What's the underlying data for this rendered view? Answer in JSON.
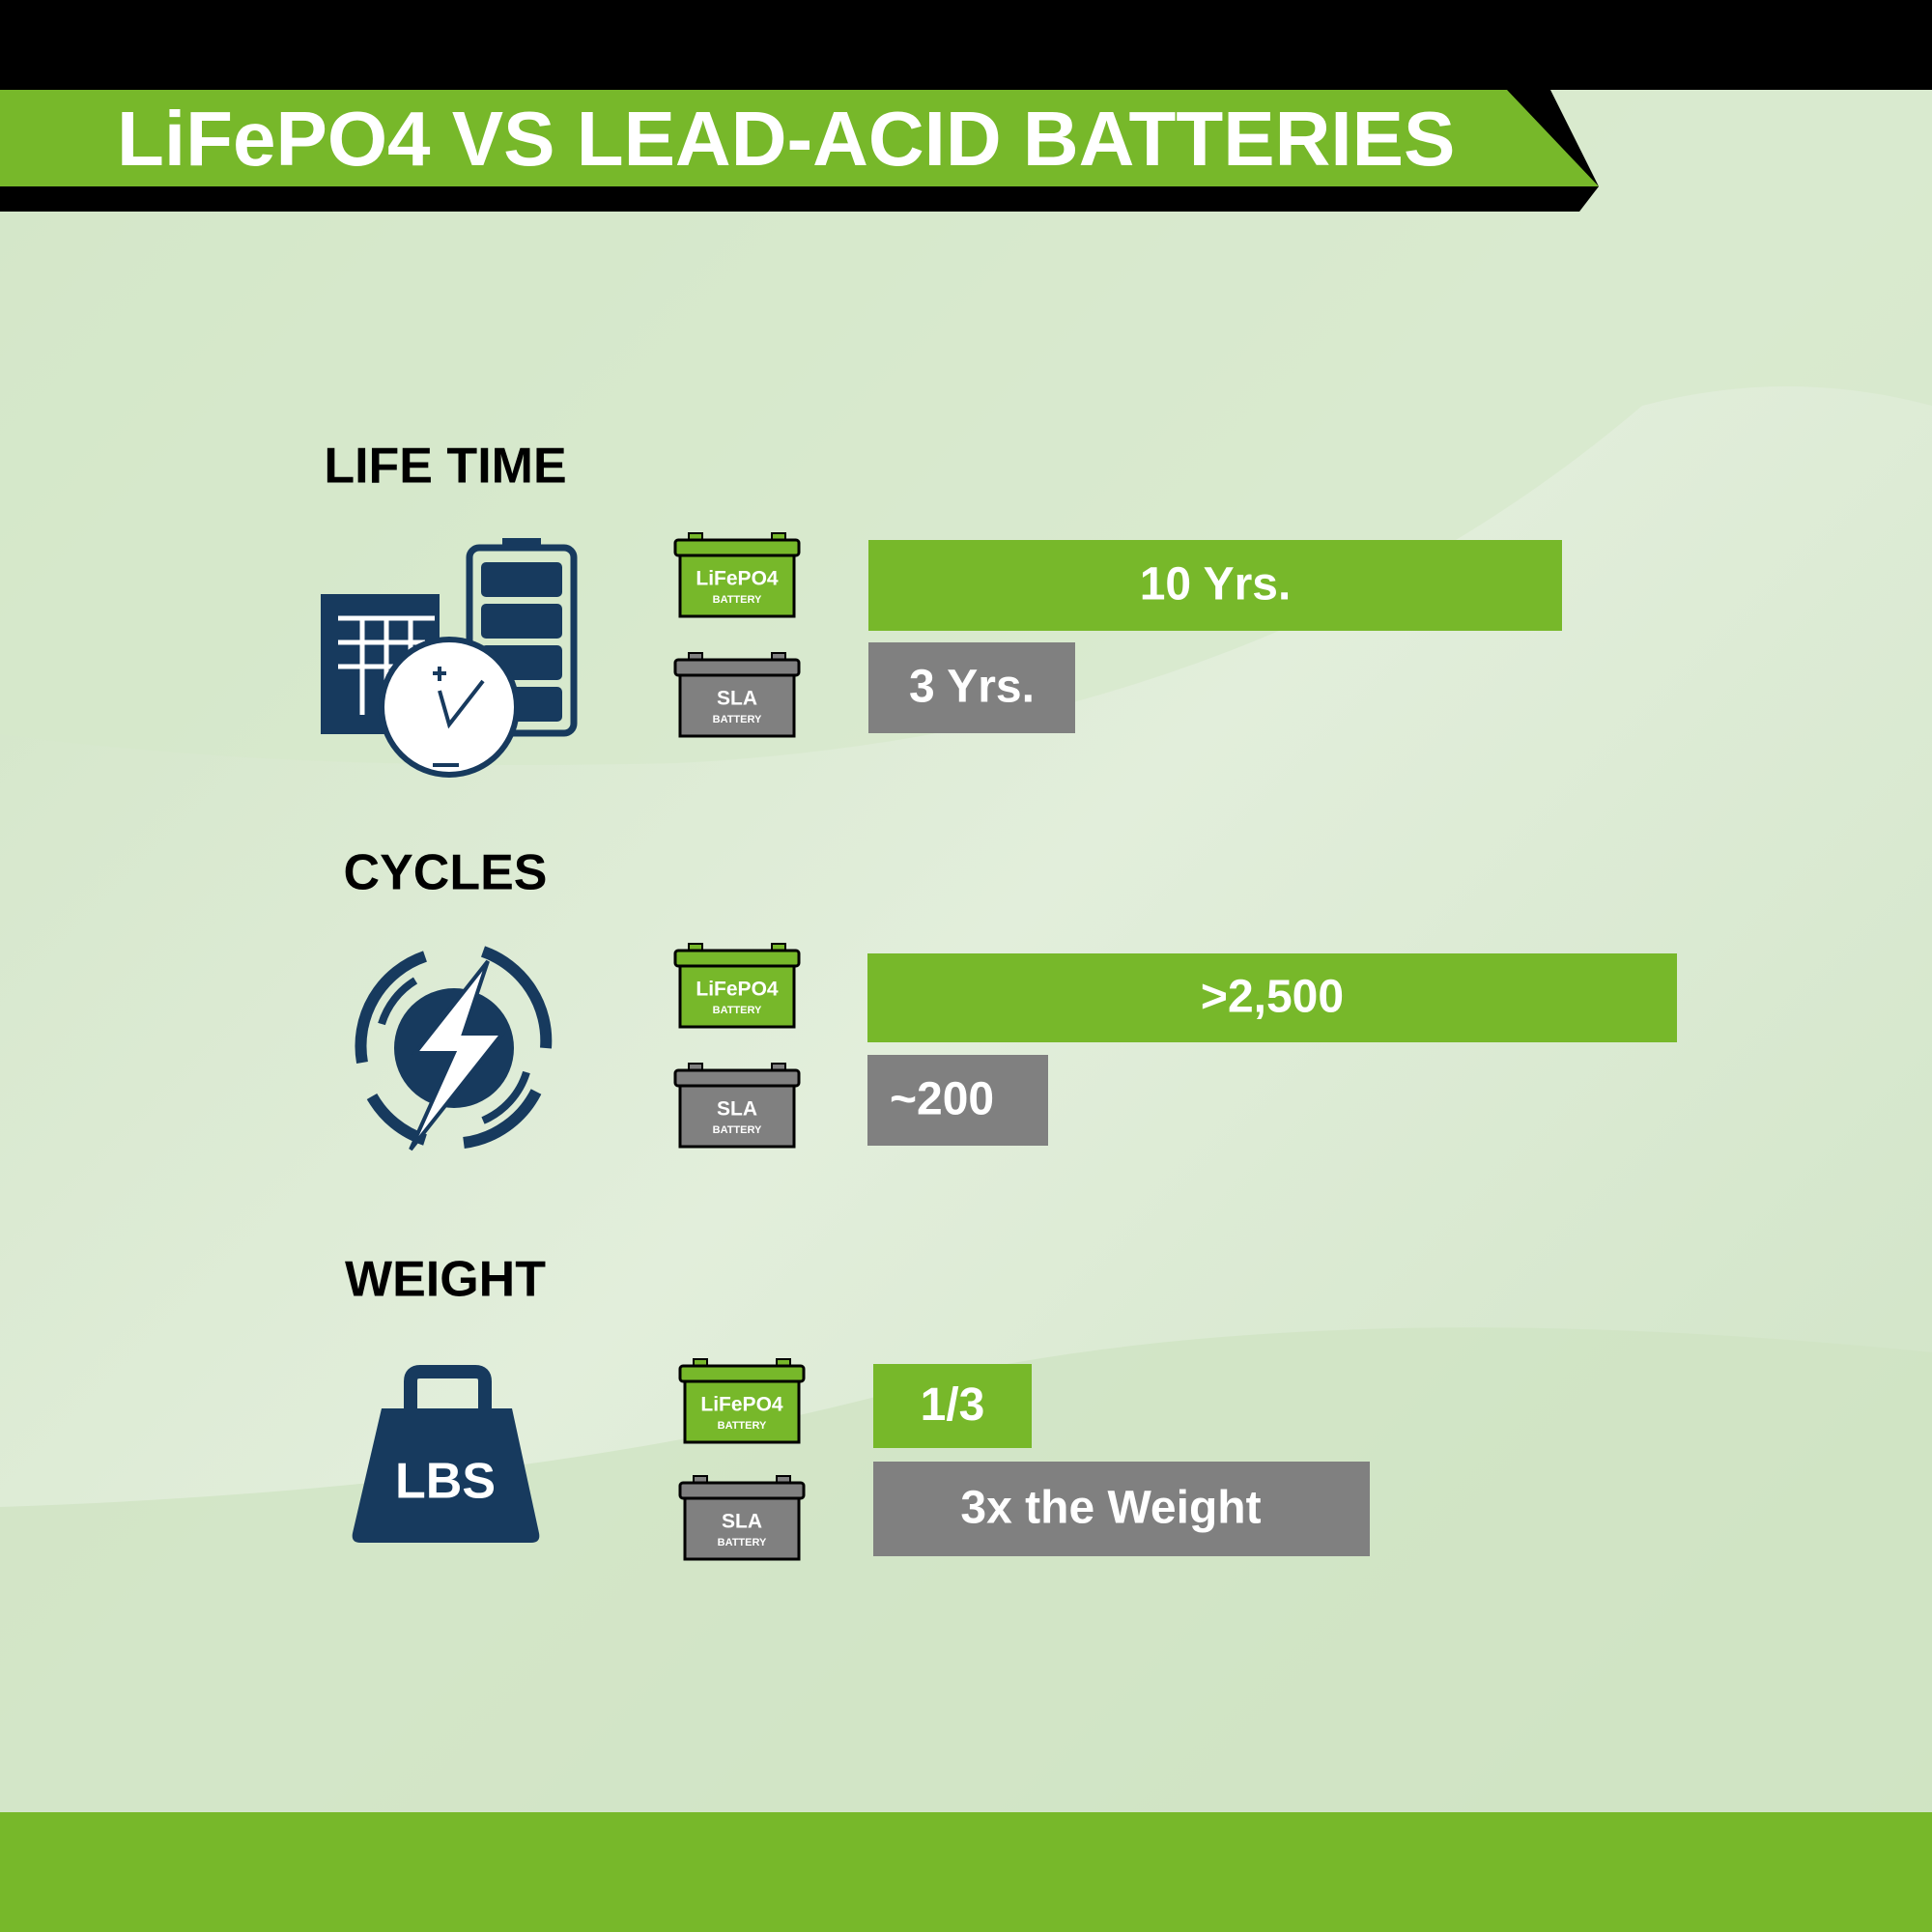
{
  "header": {
    "title": "LiFePO4 VS LEAD-ACID BATTERIES"
  },
  "sections": [
    {
      "heading": "LIFE TIME",
      "rows": [
        {
          "battery_label": "LiFePO4",
          "battery_sublabel": "BATTERY",
          "value": "10 Yrs."
        },
        {
          "battery_label": "SLA",
          "battery_sublabel": "BATTERY",
          "value": "3 Yrs."
        }
      ]
    },
    {
      "heading": "CYCLES",
      "rows": [
        {
          "battery_label": "LiFePO4",
          "battery_sublabel": "BATTERY",
          "value": ">2,500"
        },
        {
          "battery_label": "SLA",
          "battery_sublabel": "BATTERY",
          "value": "~200"
        }
      ]
    },
    {
      "heading": "WEIGHT",
      "icon_text": "LBS",
      "rows": [
        {
          "battery_label": "LiFePO4",
          "battery_sublabel": "BATTERY",
          "value": "1/3"
        },
        {
          "battery_label": "SLA",
          "battery_sublabel": "BATTERY",
          "value": "3x the Weight"
        }
      ]
    }
  ]
}
